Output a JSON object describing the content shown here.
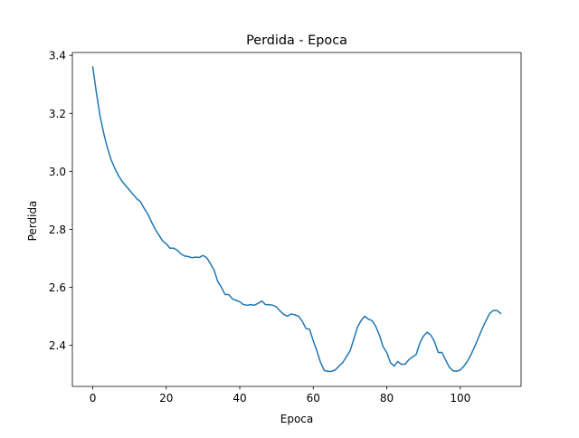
{
  "chart_data": {
    "type": "line",
    "title": "Perdida - Epoca",
    "xlabel": "Epoca",
    "ylabel": "Perdida",
    "xlim": [
      -5.55,
      116.55
    ],
    "ylim": [
      2.258,
      3.41
    ],
    "xticks": [
      0,
      20,
      40,
      60,
      80,
      100
    ],
    "yticks": [
      2.4,
      2.6,
      2.8,
      3.0,
      3.2,
      3.4
    ],
    "xtick_labels": [
      "0",
      "20",
      "40",
      "60",
      "80",
      "100"
    ],
    "ytick_labels": [
      "2.4",
      "2.6",
      "2.8",
      "3.0",
      "3.2",
      "3.4"
    ],
    "grid": false,
    "legend": "none",
    "series": [
      {
        "color": "#1f77b4",
        "x": [
          0,
          1,
          2,
          3,
          4,
          5,
          6,
          7,
          8,
          9,
          10,
          11,
          12,
          13,
          14,
          15,
          16,
          17,
          18,
          19,
          20,
          21,
          22,
          23,
          24,
          25,
          26,
          27,
          28,
          29,
          30,
          31,
          32,
          33,
          34,
          35,
          36,
          37,
          38,
          39,
          40,
          41,
          42,
          43,
          44,
          45,
          46,
          47,
          48,
          49,
          50,
          51,
          52,
          53,
          54,
          55,
          56,
          57,
          58,
          59,
          60,
          61,
          62,
          63,
          64,
          65,
          66,
          67,
          68,
          69,
          70,
          71,
          72,
          73,
          74,
          75,
          76,
          77,
          78,
          79,
          80,
          81,
          82,
          83,
          84,
          85,
          86,
          87,
          88,
          89,
          90,
          91,
          92,
          93,
          94,
          95,
          96,
          97,
          98,
          99,
          100,
          101,
          102,
          103,
          104,
          105,
          106,
          107,
          108,
          109,
          110,
          111
        ],
        "y": [
          3.36,
          3.27,
          3.19,
          3.13,
          3.08,
          3.04,
          3.01,
          2.985,
          2.965,
          2.95,
          2.935,
          2.92,
          2.905,
          2.895,
          2.872,
          2.852,
          2.825,
          2.8,
          2.78,
          2.76,
          2.75,
          2.735,
          2.735,
          2.728,
          2.715,
          2.708,
          2.706,
          2.702,
          2.704,
          2.703,
          2.71,
          2.702,
          2.682,
          2.66,
          2.62,
          2.6,
          2.575,
          2.575,
          2.56,
          2.555,
          2.55,
          2.54,
          2.538,
          2.54,
          2.538,
          2.545,
          2.553,
          2.54,
          2.54,
          2.538,
          2.532,
          2.518,
          2.506,
          2.5,
          2.508,
          2.505,
          2.5,
          2.483,
          2.458,
          2.455,
          2.415,
          2.38,
          2.34,
          2.313,
          2.31,
          2.31,
          2.315,
          2.328,
          2.34,
          2.36,
          2.38,
          2.42,
          2.462,
          2.485,
          2.5,
          2.49,
          2.485,
          2.465,
          2.435,
          2.395,
          2.375,
          2.34,
          2.328,
          2.344,
          2.334,
          2.335,
          2.35,
          2.36,
          2.368,
          2.408,
          2.432,
          2.445,
          2.435,
          2.412,
          2.375,
          2.375,
          2.35,
          2.325,
          2.312,
          2.31,
          2.315,
          2.328,
          2.346,
          2.37,
          2.398,
          2.428,
          2.458,
          2.485,
          2.51,
          2.52,
          2.52,
          2.51
        ]
      }
    ]
  }
}
